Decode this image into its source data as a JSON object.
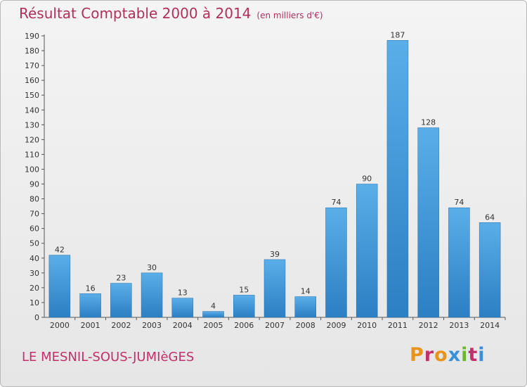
{
  "header": {
    "title": "Résultat Comptable 2000 à 2014",
    "unit": "(en milliers d'€)"
  },
  "footer": {
    "commune": "LE MESNIL-SOUS-JUMIèGES",
    "logo": "Proxiti"
  },
  "colors": {
    "bar_top": "#5aaee8",
    "bar_bottom": "#2b7fc3",
    "title": "#b0305a",
    "logo": [
      "#e8941a",
      "#c0306a",
      "#e8941a",
      "#3a8fd8",
      "#6ab82e",
      "#c0306a",
      "#3a8fd8"
    ]
  },
  "chart_data": {
    "type": "bar",
    "title": "Résultat Comptable 2000 à 2014",
    "categories": [
      "2000",
      "2001",
      "2002",
      "2003",
      "2004",
      "2005",
      "2006",
      "2007",
      "2008",
      "2009",
      "2010",
      "2011",
      "2012",
      "2013",
      "2014"
    ],
    "values": [
      42,
      16,
      23,
      30,
      13,
      4,
      15,
      39,
      14,
      74,
      90,
      187,
      128,
      74,
      64
    ],
    "ylim": [
      0,
      190
    ],
    "ytick_step": 10,
    "grid": false,
    "legend": "none"
  }
}
